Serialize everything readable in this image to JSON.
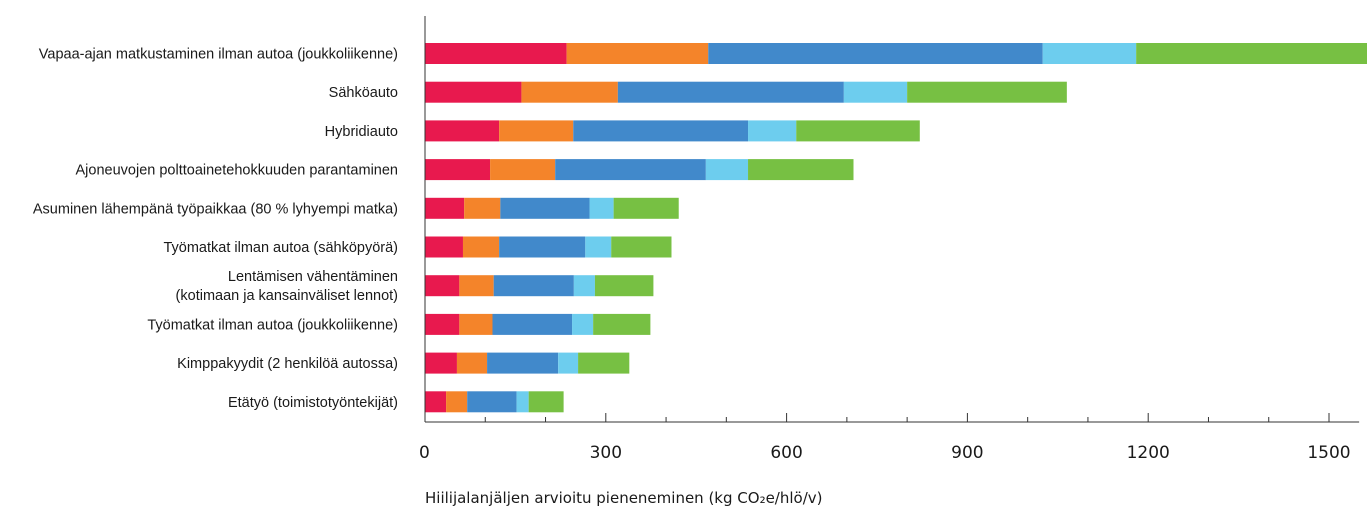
{
  "chart_data": {
    "type": "bar",
    "orientation": "horizontal",
    "stacked": true,
    "title": "",
    "xlabel": "Hiilijalanjäljen arvioitu pieneneminen (kg CO₂e/hlö/v)",
    "ylabel": "",
    "xlim": [
      0,
      1550
    ],
    "xticks": [
      0,
      300,
      600,
      900,
      1200,
      1500
    ],
    "x_minor_step": 100,
    "grid": false,
    "legend": "none",
    "categories": [
      [
        "Vapaa-ajan matkustaminen ilman autoa (joukkoliikenne)"
      ],
      [
        "Sähköauto"
      ],
      [
        "Hybridiauto"
      ],
      [
        "Ajoneuvojen polttoainetehokkuuden parantaminen"
      ],
      [
        "Asuminen lähempänä työpaikkaa (80 % lyhyempi matka)"
      ],
      [
        "Työmatkat ilman autoa (sähköpyörä)"
      ],
      [
        "Lentämisen vähentäminen",
        "(kotimaan ja kansainväliset lennot)"
      ],
      [
        "Työmatkat ilman autoa (joukkoliikenne)"
      ],
      [
        "Kimppakyydit (2 henkilöä autossa)"
      ],
      [
        "Etätyö (toimistotyöntekijät)"
      ]
    ],
    "series": [
      {
        "color": "#e8194e",
        "values": [
          235,
          160,
          123,
          108,
          65,
          63,
          57,
          57,
          53,
          35
        ]
      },
      {
        "color": "#f4842a",
        "values": [
          235,
          160,
          123,
          108,
          60,
          60,
          57,
          55,
          50,
          35
        ]
      },
      {
        "color": "#4189cb",
        "values": [
          555,
          375,
          290,
          250,
          148,
          143,
          133,
          132,
          118,
          82
        ]
      },
      {
        "color": "#6dcdee",
        "values": [
          155,
          105,
          80,
          70,
          40,
          43,
          35,
          35,
          33,
          20
        ]
      },
      {
        "color": "#77c043",
        "values": [
          400,
          265,
          205,
          175,
          108,
          100,
          97,
          95,
          85,
          58
        ]
      }
    ]
  }
}
